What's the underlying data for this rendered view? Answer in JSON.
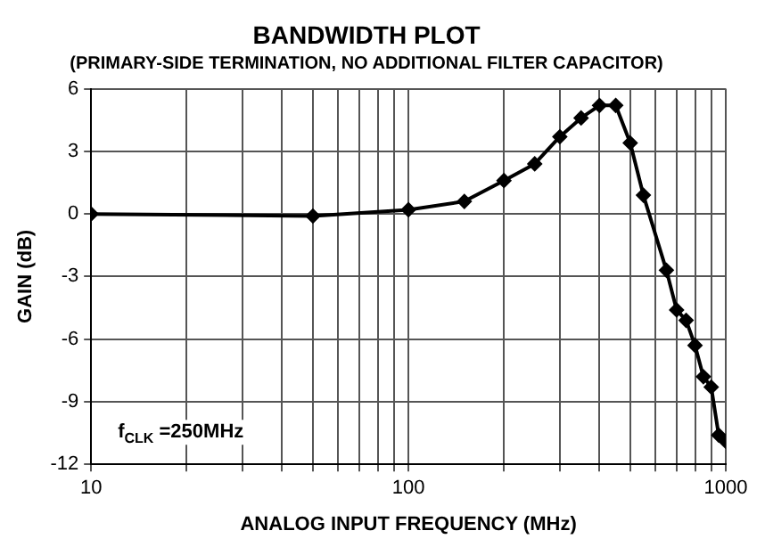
{
  "chart_data": {
    "type": "line",
    "title": "BANDWIDTH PLOT",
    "subtitle": "(PRIMARY-SIDE TERMINATION, NO ADDITIONAL FILTER CAPACITOR)",
    "xlabel": "ANALOG INPUT FREQUENCY (MHz)",
    "ylabel": "GAIN (dB)",
    "annotations": [
      "f$_{CLK}$ =250MHz"
    ],
    "log": "x",
    "grid": true,
    "marker": "diamond",
    "line_style": "solid",
    "legend": false,
    "xlim": [
      10,
      1000
    ],
    "ylim": [
      -12,
      6
    ],
    "xticks": [
      10,
      {
        "value": 20,
        "label": null
      },
      {
        "value": 30,
        "label": null
      },
      {
        "value": 40,
        "label": null
      },
      {
        "value": 50,
        "label": null
      },
      {
        "value": 60,
        "label": null
      },
      {
        "value": 70,
        "label": null
      },
      {
        "value": 80,
        "label": null
      },
      {
        "value": 90,
        "label": null
      },
      100,
      {
        "value": 200,
        "label": null
      },
      {
        "value": 300,
        "label": null
      },
      {
        "value": 400,
        "label": null
      },
      {
        "value": 500,
        "label": null
      },
      {
        "value": 600,
        "label": null
      },
      {
        "value": 700,
        "label": null
      },
      {
        "value": 800,
        "label": null
      },
      {
        "value": 900,
        "label": null
      },
      1000
    ],
    "yticks": [
      -12,
      -9,
      -6,
      -3,
      0,
      3,
      6
    ],
    "x": [
      10,
      50,
      100,
      150,
      200,
      250,
      300,
      350,
      400,
      450,
      500,
      550,
      650,
      700,
      750,
      800,
      850,
      900,
      950,
      1000
    ],
    "series": [
      {
        "color": "#000000",
        "values": [
          0,
          -0.1,
          0.2,
          0.6,
          1.6,
          2.4,
          3.7,
          4.6,
          5.2,
          5.2,
          3.4,
          0.9,
          -2.7,
          -4.6,
          -5.1,
          -6.3,
          -7.8,
          -8.3,
          -10.6,
          -10.9
        ]
      }
    ]
  }
}
